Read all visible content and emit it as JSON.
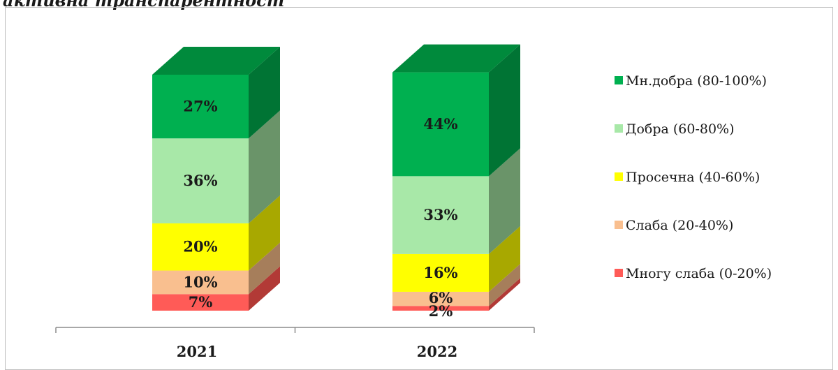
{
  "title": "активна транспарентност",
  "chart_data": {
    "type": "bar",
    "stacked": true,
    "three_d": true,
    "categories": [
      "2021",
      "2022"
    ],
    "series": [
      {
        "name": "Многу слаба (0-20%)",
        "values": [
          7,
          2
        ],
        "labels": [
          "7%",
          "2%"
        ],
        "color": "#ff5b57",
        "side_color": "#b23a36"
      },
      {
        "name": "Слаба (20-40%)",
        "values": [
          10,
          6
        ],
        "labels": [
          "10%",
          "6%"
        ],
        "color": "#f9bf8f",
        "side_color": "#a67e5b"
      },
      {
        "name": "Просечна (40-60%)",
        "values": [
          20,
          16
        ],
        "labels": [
          "20%",
          "16%"
        ],
        "color": "#ffff00",
        "side_color": "#a8a800"
      },
      {
        "name": "Добра (60-80%)",
        "values": [
          36,
          33
        ],
        "labels": [
          "36%",
          "33%"
        ],
        "color": "#a8e8a8",
        "side_color": "#6a9469"
      },
      {
        "name": "Мн.добра (80-100%)",
        "values": [
          27,
          44
        ],
        "labels": [
          "27%",
          "44%"
        ],
        "color": "#00b050",
        "side_color": "#007434",
        "top_color": "#008a3c"
      }
    ],
    "legend_order": [
      "Мн.добра (80-100%)",
      "Добра (60-80%)",
      "Просечна (40-60%)",
      "Слаба (20-40%)",
      "Многу слаба (0-20%)"
    ],
    "legend_position": "right",
    "ylim": [
      0,
      100
    ],
    "grid": false
  }
}
